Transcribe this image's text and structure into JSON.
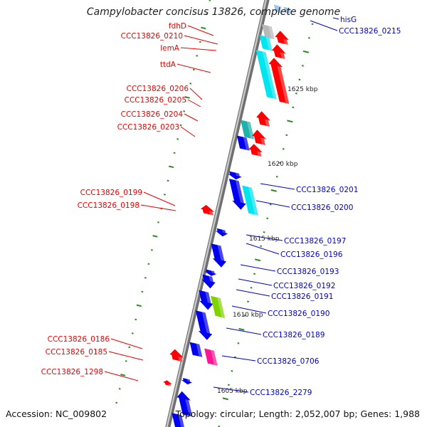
{
  "title": "Campylobacter concisus 13826, complete genome",
  "accession_label": "Accession: NC_009802",
  "topology_label": "Topology: circular; Length: 2,052,007 bp; Genes: 1,988",
  "colors": {
    "forward_gene": "#ff0000",
    "reverse_gene": "#0000ee",
    "cyan_feature": "#00e5ee",
    "teal_feature": "#20b2aa",
    "green_feature": "#7fd400",
    "magenta_feature": "#ff1493",
    "pale_feature": "#9ec9ee",
    "left_label": "#ee0000",
    "right_label": "#0000cc",
    "tick": "#2e8b22",
    "backbone": "#909090"
  },
  "scale_labels": [
    "1625 kbp",
    "1620 kbp",
    "1615 kbp",
    "1610 kbp",
    "1605 kbp"
  ],
  "left_labels": [
    "fdhD",
    "CCC13826_0210",
    "lemA",
    "ttdA",
    "CCC13826_0206",
    "CCC13826_0205",
    "CCC13826_0204",
    "CCC13826_0203",
    "CCC13826_0199",
    "CCC13826_0198",
    "CCC13826_0186",
    "CCC13826_0185",
    "CCC13826_1298"
  ],
  "right_labels": [
    "hisG",
    "CCC13826_0215",
    "CCC13826_0201",
    "CCC13826_0200",
    "CCC13826_0197",
    "CCC13826_0196",
    "CCC13826_0193",
    "CCC13826_0192",
    "CCC13826_0191",
    "CCC13826_0190",
    "CCC13826_0189",
    "CCC13826_0706",
    "CCC13826_2279"
  ]
}
